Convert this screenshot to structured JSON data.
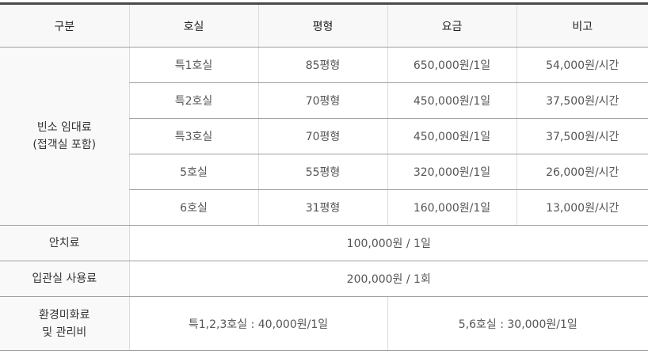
{
  "headers": [
    "구분",
    "호실",
    "평형",
    "요금",
    "비고"
  ],
  "rental": {
    "category_line1": "빈소 임대료",
    "category_line2": "(접객실 포함)",
    "rows": [
      {
        "room": "특1호실",
        "size": "85평형",
        "fee": "650,000원/1일",
        "note": "54,000원/시간"
      },
      {
        "room": "특2호실",
        "size": "70평형",
        "fee": "450,000원/1일",
        "note": "37,500원/시간"
      },
      {
        "room": "특3호실",
        "size": "70평형",
        "fee": "450,000원/1일",
        "note": "37,500원/시간"
      },
      {
        "room": "5호실",
        "size": "55평형",
        "fee": "320,000원/1일",
        "note": "26,000원/시간"
      },
      {
        "room": "6호실",
        "size": "31평형",
        "fee": "160,000원/1일",
        "note": "13,000원/시간"
      }
    ]
  },
  "enshrinement": {
    "label": "안치료",
    "value": "100,000원 / 1일"
  },
  "coffin_room": {
    "label": "입관실 사용료",
    "value": "200,000원 / 1회"
  },
  "maintenance": {
    "label_line1": "환경미화료",
    "label_line2": "및 관리비",
    "value_a": "특1,2,3호실 : 40,000원/1일",
    "value_b": "5,6호실 : 30,000원/1일"
  }
}
